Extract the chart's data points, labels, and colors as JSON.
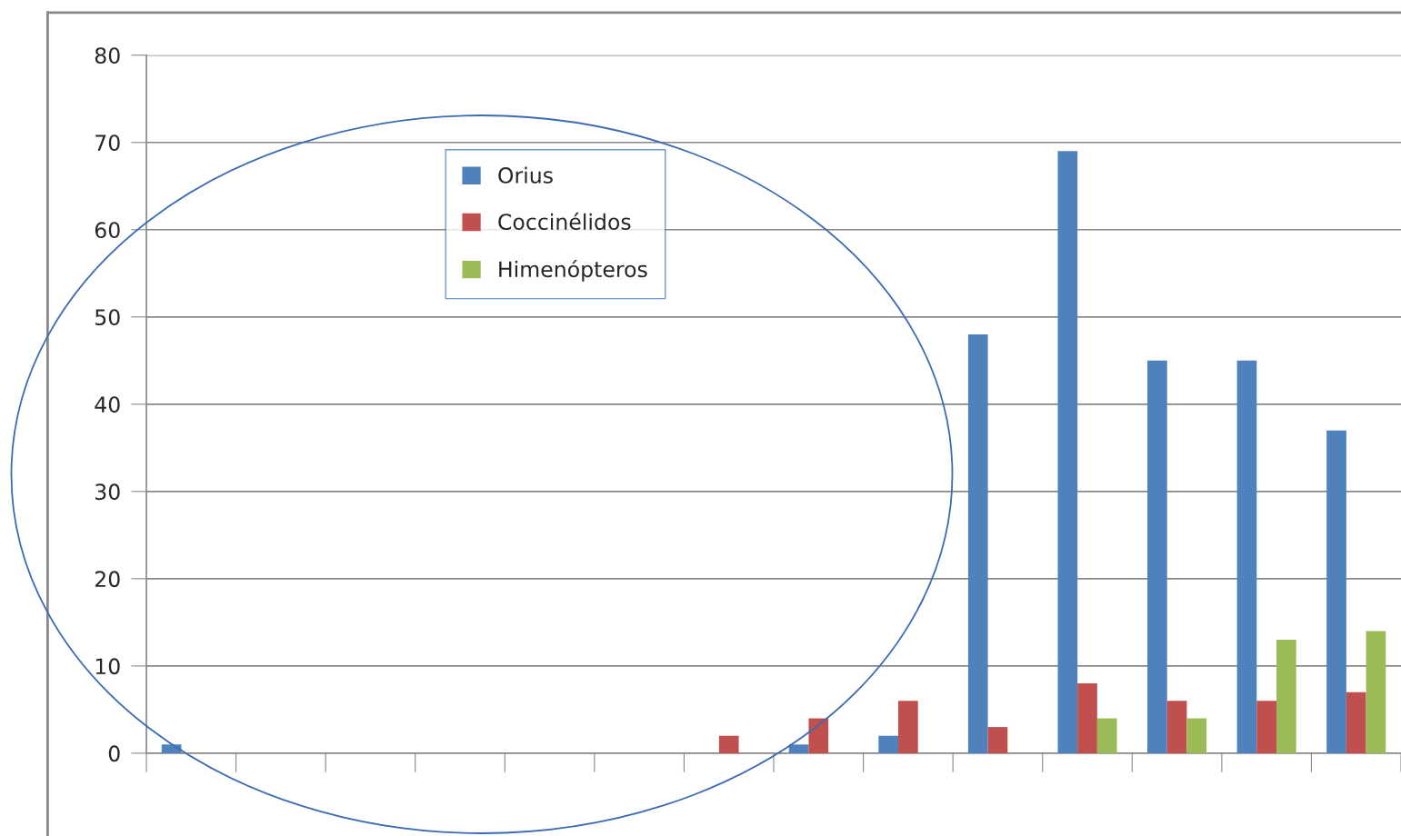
{
  "chart_data": {
    "type": "bar",
    "categories": [
      null,
      null,
      null,
      null,
      null,
      null,
      null,
      null,
      null,
      null,
      null,
      null,
      null,
      null
    ],
    "series": [
      {
        "name": "Orius",
        "color": "#4f81bd",
        "values": [
          1,
          null,
          null,
          null,
          null,
          null,
          null,
          1,
          2,
          48,
          69,
          45,
          45,
          37
        ]
      },
      {
        "name": "Coccinélidos",
        "color": "#c0504d",
        "values": [
          null,
          null,
          null,
          null,
          null,
          null,
          2,
          4,
          6,
          3,
          8,
          6,
          6,
          7
        ]
      },
      {
        "name": "Himenópteros",
        "color": "#9bbb59",
        "values": [
          null,
          null,
          null,
          null,
          null,
          null,
          null,
          null,
          null,
          null,
          4,
          4,
          13,
          14
        ]
      }
    ],
    "ylim": [
      0,
      80
    ],
    "yticks": [
      0,
      10,
      20,
      30,
      40,
      50,
      60,
      70,
      80
    ],
    "grid": "y",
    "legend": "top left",
    "tick_labels": "y"
  }
}
